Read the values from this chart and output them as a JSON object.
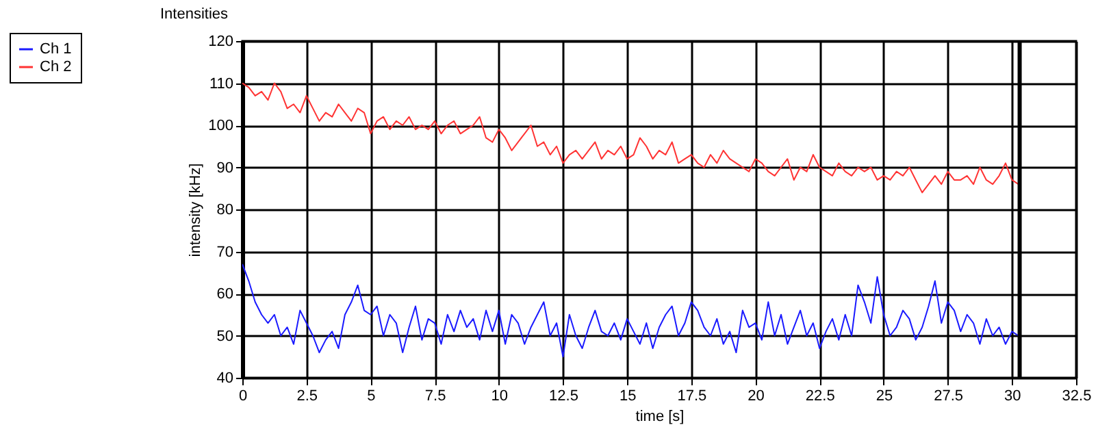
{
  "chart_data": {
    "type": "line",
    "title": "Intensities",
    "xlabel": "time [s]",
    "ylabel": "intensity [kHz]",
    "x": [
      0,
      0.25,
      0.5,
      0.75,
      1,
      1.25,
      1.5,
      1.75,
      2,
      2.25,
      2.5,
      2.75,
      3,
      3.25,
      3.5,
      3.75,
      4,
      4.25,
      4.5,
      4.75,
      5,
      5.25,
      5.5,
      5.75,
      6,
      6.25,
      6.5,
      6.75,
      7,
      7.25,
      7.5,
      7.75,
      8,
      8.25,
      8.5,
      8.75,
      9,
      9.25,
      9.5,
      9.75,
      10,
      10.25,
      10.5,
      10.75,
      11,
      11.25,
      11.5,
      11.75,
      12,
      12.25,
      12.5,
      12.75,
      13,
      13.25,
      13.5,
      13.75,
      14,
      14.25,
      14.5,
      14.75,
      15,
      15.25,
      15.5,
      15.75,
      16,
      16.25,
      16.5,
      16.75,
      17,
      17.25,
      17.5,
      17.75,
      18,
      18.25,
      18.5,
      18.75,
      19,
      19.25,
      19.5,
      19.75,
      20,
      20.25,
      20.5,
      20.75,
      21,
      21.25,
      21.5,
      21.75,
      22,
      22.25,
      22.5,
      22.75,
      23,
      23.25,
      23.5,
      23.75,
      24,
      24.25,
      24.5,
      24.75,
      25,
      25.25,
      25.5,
      25.75,
      26,
      26.25,
      26.5,
      26.75,
      27,
      27.25,
      27.5,
      27.75,
      28,
      28.25,
      28.5,
      28.75,
      29,
      29.25,
      29.5,
      29.75,
      30,
      30.25
    ],
    "series": [
      {
        "name": "Ch 1",
        "color": "#1a1aff",
        "values": [
          67,
          63,
          58,
          55,
          53,
          55,
          50,
          52,
          48,
          56,
          53,
          50,
          46,
          49,
          51,
          47,
          55,
          58,
          62,
          56,
          55,
          57,
          50,
          55,
          53,
          46,
          52,
          57,
          49,
          54,
          53,
          48,
          55,
          51,
          56,
          52,
          54,
          49,
          56,
          51,
          56,
          48,
          55,
          53,
          48,
          52,
          55,
          58,
          50,
          53,
          45,
          55,
          50,
          47,
          52,
          56,
          51,
          50,
          53,
          49,
          54,
          51,
          48,
          53,
          47,
          52,
          55,
          57,
          50,
          53,
          58,
          56,
          52,
          50,
          54,
          48,
          51,
          46,
          56,
          52,
          53,
          49,
          58,
          50,
          55,
          48,
          52,
          56,
          50,
          53,
          47,
          51,
          54,
          49,
          55,
          50,
          62,
          58,
          53,
          64,
          55,
          50,
          52,
          56,
          54,
          49,
          52,
          57,
          63,
          53,
          58,
          56,
          51,
          55,
          53,
          48,
          54,
          50,
          52,
          48,
          51,
          50
        ]
      },
      {
        "name": "Ch 2",
        "color": "#ff3333",
        "values": [
          110,
          109,
          107,
          108,
          106,
          110,
          108,
          104,
          105,
          103,
          107,
          104,
          101,
          103,
          102,
          105,
          103,
          101,
          104,
          103,
          98,
          101,
          102,
          99,
          101,
          100,
          102,
          99,
          100,
          99,
          101,
          98,
          100,
          101,
          98,
          99,
          100,
          102,
          97,
          96,
          99,
          97,
          94,
          96,
          98,
          100,
          95,
          96,
          93,
          95,
          91,
          93,
          94,
          92,
          94,
          96,
          92,
          94,
          93,
          95,
          92,
          93,
          97,
          95,
          92,
          94,
          93,
          96,
          91,
          92,
          93,
          91,
          90,
          93,
          91,
          94,
          92,
          91,
          90,
          89,
          92,
          91,
          89,
          88,
          90,
          92,
          87,
          90,
          89,
          93,
          90,
          89,
          88,
          91,
          89,
          88,
          90,
          89,
          90,
          87,
          88,
          87,
          89,
          88,
          90,
          87,
          84,
          86,
          88,
          86,
          89,
          87,
          87,
          88,
          86,
          90,
          87,
          86,
          88,
          91,
          87,
          86
        ]
      }
    ],
    "xlim": [
      0,
      32.5
    ],
    "xticks": [
      0,
      2.5,
      5,
      7.5,
      10,
      12.5,
      15,
      17.5,
      20,
      22.5,
      25,
      27.5,
      30,
      32.5
    ],
    "ylim": [
      40,
      120
    ],
    "yticks": [
      40,
      50,
      60,
      70,
      80,
      90,
      100,
      110,
      120
    ],
    "grid": true,
    "legend": "top left",
    "ref_lines": [
      {
        "axis": "x",
        "value": 30.3,
        "color": "#000000"
      }
    ]
  }
}
